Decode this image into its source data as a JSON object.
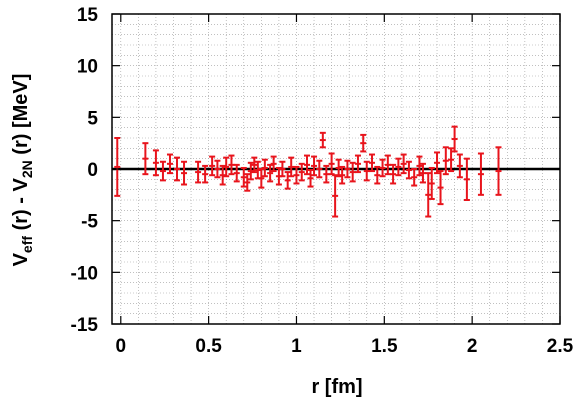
{
  "chart_data": {
    "type": "scatter",
    "title": "",
    "xlabel": "r [fm]",
    "ylabel": {
      "v1": "V",
      "sub1": "eff",
      "mid": " (r) - V",
      "sub2": "2N",
      "end": " (r) [MeV]"
    },
    "xlim": [
      -0.05,
      2.5
    ],
    "ylim": [
      -15,
      15
    ],
    "xticks": [
      0,
      0.5,
      1,
      1.5,
      2,
      2.5
    ],
    "yticks": [
      -15,
      -10,
      -5,
      0,
      5,
      10,
      15
    ],
    "xtick_labels": [
      "0",
      "0.5",
      "1",
      "1.5",
      "2",
      "2.5"
    ],
    "ytick_labels": [
      "-15",
      "-10",
      "-5",
      "0",
      "5",
      "10",
      "15"
    ],
    "grid": true,
    "reference_line_y": 0,
    "marker_color": "#e8141c",
    "series": [
      {
        "x": [
          -0.02,
          0.14,
          0.2,
          0.24,
          0.28,
          0.32,
          0.36,
          0.44,
          0.48,
          0.52,
          0.55,
          0.58,
          0.6,
          0.63,
          0.66,
          0.7,
          0.72,
          0.74,
          0.76,
          0.78,
          0.8,
          0.82,
          0.85,
          0.87,
          0.9,
          0.92,
          0.95,
          0.97,
          1.0,
          1.03,
          1.06,
          1.08,
          1.1,
          1.13,
          1.15,
          1.17,
          1.2,
          1.22,
          1.24,
          1.26,
          1.29,
          1.32,
          1.35,
          1.38,
          1.4,
          1.43,
          1.46,
          1.49,
          1.52,
          1.55,
          1.58,
          1.61,
          1.64,
          1.67,
          1.7,
          1.72,
          1.75,
          1.77,
          1.8,
          1.82,
          1.85,
          1.88,
          1.9,
          1.93,
          1.97,
          2.05,
          2.15
        ],
        "y": [
          0.2,
          1.0,
          0.6,
          -0.2,
          0.5,
          0.0,
          -0.4,
          -0.3,
          -0.5,
          0.3,
          0.0,
          -0.6,
          0.2,
          0.4,
          -0.4,
          -0.8,
          -1.3,
          -0.2,
          0.4,
          -0.1,
          -0.9,
          0.1,
          -0.4,
          0.5,
          -0.7,
          0.0,
          -1.1,
          0.2,
          -0.6,
          -0.3,
          0.4,
          -0.9,
          0.3,
          0.0,
          2.8,
          -0.5,
          0.5,
          -2.6,
          0.1,
          -0.6,
          0.0,
          -0.3,
          0.5,
          2.5,
          -0.2,
          0.6,
          -0.6,
          0.1,
          0.4,
          -0.5,
          0.2,
          0.5,
          -0.1,
          -0.8,
          0.3,
          -0.4,
          -2.5,
          -1.4,
          0.6,
          -1.8,
          0.8,
          0.9,
          2.9,
          0.3,
          -1.0,
          -0.5,
          -0.2
        ],
        "err": [
          2.8,
          1.5,
          1.2,
          0.9,
          0.9,
          1.1,
          1.1,
          1.0,
          0.8,
          0.9,
          0.8,
          0.9,
          0.9,
          0.9,
          0.8,
          0.9,
          0.8,
          0.8,
          0.7,
          0.8,
          0.9,
          0.8,
          0.8,
          0.7,
          0.8,
          0.7,
          0.8,
          0.9,
          0.8,
          0.8,
          0.9,
          0.8,
          0.9,
          0.8,
          0.7,
          0.8,
          1.0,
          2.0,
          0.8,
          0.8,
          0.8,
          0.9,
          0.8,
          0.8,
          0.9,
          0.8,
          0.8,
          0.8,
          0.9,
          0.9,
          0.8,
          0.9,
          0.8,
          0.8,
          0.9,
          0.9,
          2.1,
          1.5,
          1.0,
          1.6,
          1.3,
          1.1,
          1.2,
          1.1,
          2.0,
          2.0,
          2.3
        ]
      }
    ]
  }
}
